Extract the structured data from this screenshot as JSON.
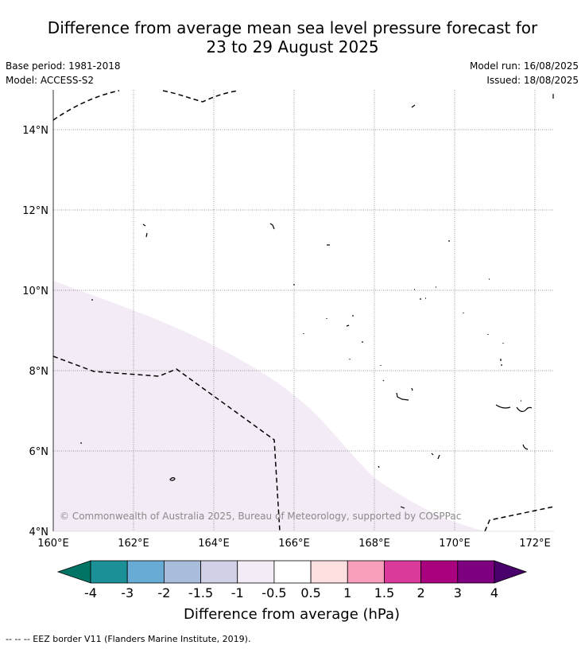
{
  "header": {
    "title_line1": "Difference from average mean sea level pressure forecast for",
    "title_line2": "23 to 29 August 2025",
    "base_period": "Base period: 1981-2018",
    "model": "Model: ACCESS-S2",
    "model_run": "Model run: 16/08/2025",
    "issued": "Issued: 18/08/2025"
  },
  "map": {
    "lon_range": [
      160,
      172.5
    ],
    "lat_range": [
      4,
      15
    ],
    "lon_ticks": [
      "160°E",
      "162°E",
      "164°E",
      "166°E",
      "168°E",
      "170°E",
      "172°E"
    ],
    "lat_ticks": [
      "4°N",
      "6°N",
      "8°N",
      "10°N",
      "12°N",
      "14°N"
    ],
    "grid": true,
    "copyright": "© Commonwealth of Australia 2025, Bureau of Meteorology, supported by COSPPac",
    "shaded_anomaly_color": "#f3ebf5",
    "eez_color": "#000000"
  },
  "legend": {
    "label": "Difference from average (hPa)",
    "tick_labels": [
      "-4",
      "-3",
      "-2",
      "-1.5",
      "-1",
      "-0.5",
      "0.5",
      "1",
      "1.5",
      "2",
      "3",
      "4"
    ],
    "colors": [
      "#007565",
      "#1b9097",
      "#68acd5",
      "#a8bcdc",
      "#d0d0e6",
      "#f3ebf5",
      "#ffffff",
      "#fedfe0",
      "#f79ebb",
      "#da3b9a",
      "#aa017f",
      "#7e0180",
      "#4a006b"
    ]
  },
  "footer": {
    "eez_note": "--  --  -- EEZ border V11 (Flanders Marine Institute, 2019)."
  }
}
